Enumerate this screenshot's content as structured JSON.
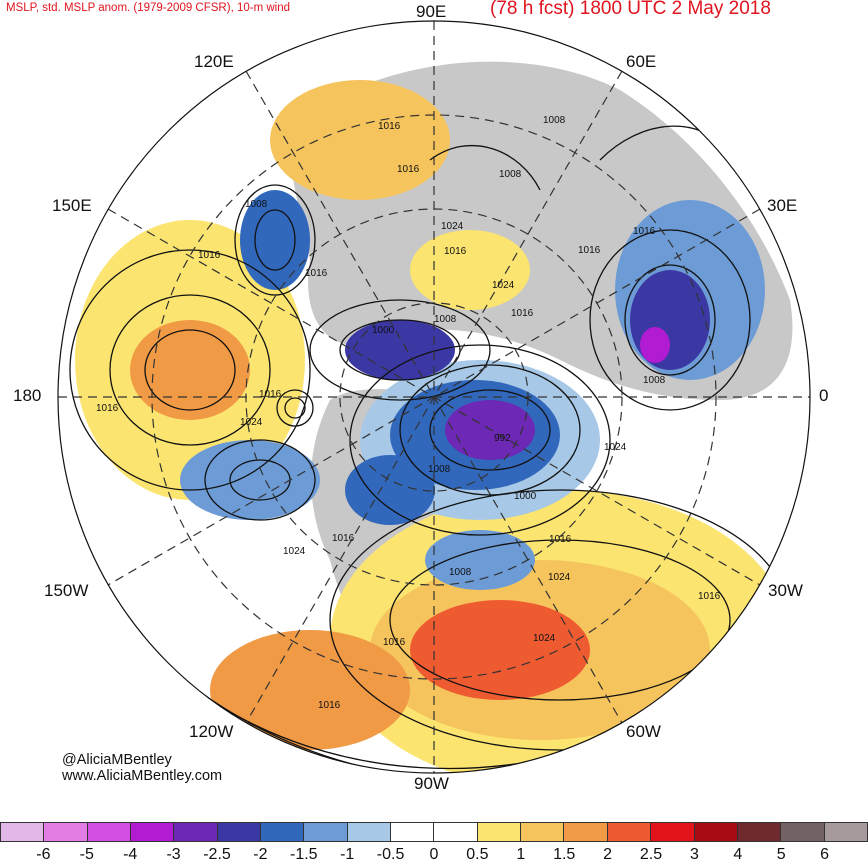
{
  "header": {
    "subtitle": "MSLP, std. MSLP anom. (1979-2009 CFSR), 10-m wind",
    "forecast": "(78 h fcst) 1800 UTC 2 May 2018"
  },
  "longitude_labels": {
    "n": "90E",
    "ne1": "60E",
    "ne2": "30E",
    "e": "0",
    "se1": "30W",
    "se2": "60W",
    "s": "90W",
    "sw1": "120W",
    "sw2": "150W",
    "w": "180",
    "nw1": "150E",
    "nw2": "120E"
  },
  "isobar_labels": [
    "1016",
    "1008",
    "1016",
    "1008",
    "1008",
    "1016",
    "1024",
    "1016",
    "1016",
    "1024",
    "1016",
    "1000",
    "1008",
    "1016",
    "1016",
    "1024",
    "1016",
    "992",
    "1008",
    "1016",
    "1008",
    "1024",
    "1000",
    "1016",
    "1024",
    "1008",
    "1016",
    "1024",
    "1024",
    "1016",
    "1016",
    "1016"
  ],
  "credit": {
    "handle": "@AliciaMBentley",
    "site": "www.AliciaMBentley.com"
  },
  "colorbar": {
    "colors": [
      "#e3b7e8",
      "#e27de6",
      "#d34ee2",
      "#b11cd2",
      "#6d28b5",
      "#3b38a4",
      "#3268bc",
      "#6c9bd6",
      "#a7c8e6",
      "#ffffff",
      "#ffffff",
      "#fbe570",
      "#f5c45c",
      "#f19a45",
      "#ef5b31",
      "#e2131a",
      "#a80b14",
      "#6e2a2d",
      "#736264",
      "#a79a9c"
    ],
    "ticks": [
      "-6",
      "-5",
      "-4",
      "-3",
      "-2.5",
      "-2",
      "-1.5",
      "-1",
      "-0.5",
      "0",
      "0.5",
      "1",
      "1.5",
      "2",
      "2.5",
      "3",
      "4",
      "5",
      "6"
    ]
  }
}
